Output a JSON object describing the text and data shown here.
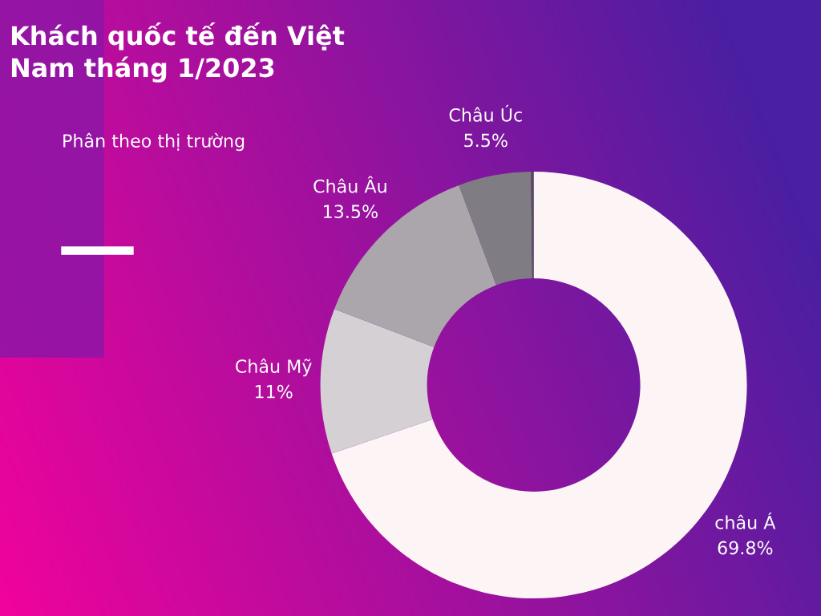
{
  "chart_data": {
    "type": "donut",
    "title": "Khách quốc tế đến Việt\nNam tháng 1/2023",
    "subtitle": "Phân theo thị trường",
    "categories": [
      "châu Á",
      "Châu Mỹ",
      "Châu Âu",
      "Châu Úc",
      null
    ],
    "values": [
      69.8,
      11,
      13.5,
      5.5,
      0.2
    ],
    "colors": [
      "#fdf5f5",
      "#d5d0d4",
      "#aaa6ab",
      "#7f7d83",
      "#55505a"
    ],
    "value_labels": [
      "69.8%",
      "11%",
      "13.5%",
      "5.5%",
      null
    ]
  }
}
